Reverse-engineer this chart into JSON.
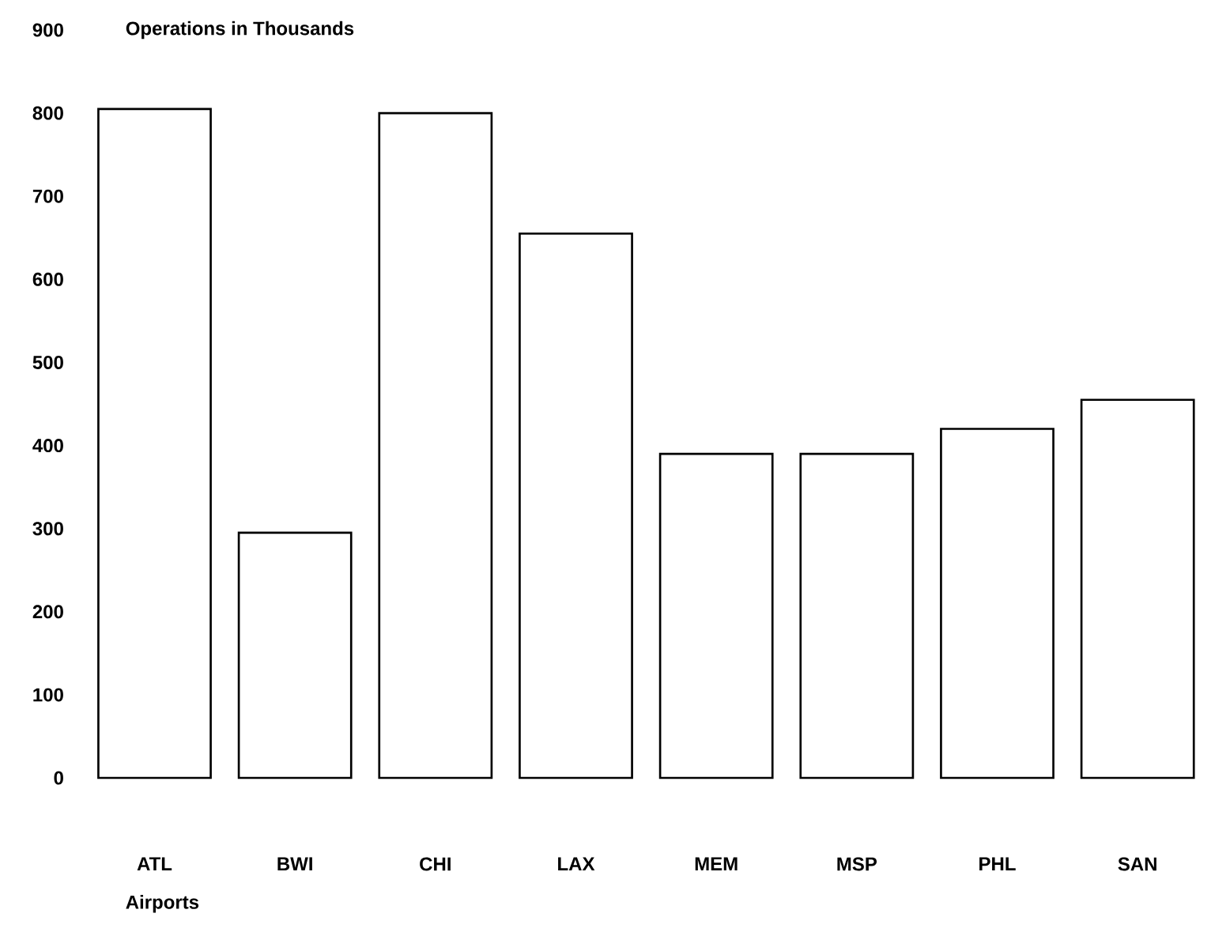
{
  "chart_data": {
    "type": "bar",
    "ylabel": "Operations in Thousands",
    "xlabel": "Airports",
    "categories": [
      "ATL",
      "BWI",
      "CHI",
      "LAX",
      "MEM",
      "MSP",
      "PHL",
      "SAN"
    ],
    "values": [
      805,
      295,
      800,
      655,
      390,
      390,
      420,
      455
    ],
    "color": "#ffffff",
    "ylim": [
      0,
      900
    ],
    "yticks": [
      0,
      100,
      200,
      300,
      400,
      500,
      600,
      700,
      800,
      900
    ]
  }
}
